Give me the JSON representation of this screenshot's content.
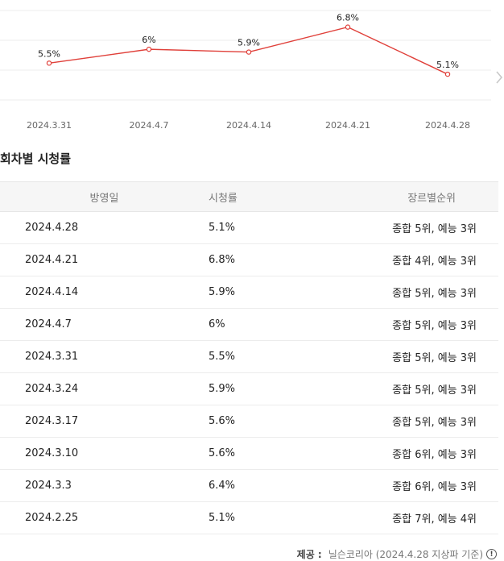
{
  "chart_data": {
    "type": "line",
    "x": [
      "2024.3.31",
      "2024.4.7",
      "2024.4.14",
      "2024.4.21",
      "2024.4.28"
    ],
    "series": [
      {
        "values": [
          5.5,
          6,
          5.9,
          6.8,
          5.1
        ],
        "labels": [
          "5.5%",
          "6%",
          "5.9%",
          "6.8%",
          "5.1%"
        ]
      }
    ],
    "title": "",
    "xlabel": "",
    "ylabel": "",
    "ylim": [
      4.2,
      7.4
    ],
    "grid": true,
    "line_color": "#e0403a"
  },
  "section": {
    "title": "회차별 시청률"
  },
  "table": {
    "headers": [
      "방영일",
      "시청률",
      "장르별순위"
    ],
    "rows": [
      [
        "2024.4.28",
        "5.1%",
        "종합 5위, 예능 3위"
      ],
      [
        "2024.4.21",
        "6.8%",
        "종합 4위, 예능 3위"
      ],
      [
        "2024.4.14",
        "5.9%",
        "종합 5위, 예능 3위"
      ],
      [
        "2024.4.7",
        "6%",
        "종합 5위, 예능 3위"
      ],
      [
        "2024.3.31",
        "5.5%",
        "종합 5위, 예능 3위"
      ],
      [
        "2024.3.24",
        "5.9%",
        "종합 5위, 예능 3위"
      ],
      [
        "2024.3.17",
        "5.6%",
        "종합 5위, 예능 3위"
      ],
      [
        "2024.3.10",
        "5.6%",
        "종합 6위, 예능 3위"
      ],
      [
        "2024.3.3",
        "6.4%",
        "종합 6위, 예능 3위"
      ],
      [
        "2024.2.25",
        "5.1%",
        "종합 7위, 예능 4위"
      ]
    ]
  },
  "footer": {
    "label": "제공 :",
    "source": "닐슨코리아 (2024.4.28 지상파 기준)",
    "info_icon": "info-icon"
  },
  "nav": {
    "next_icon": "chevron-right-icon"
  }
}
